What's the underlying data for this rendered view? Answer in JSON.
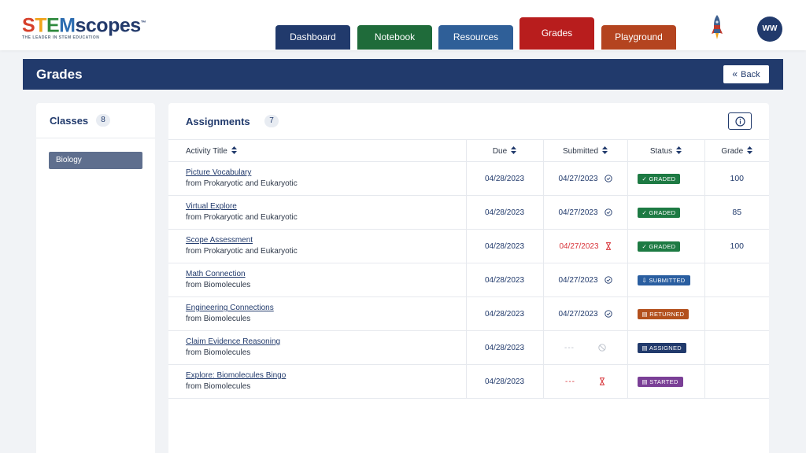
{
  "logo": {
    "parts": [
      "S",
      "T",
      "E",
      "M",
      "scopes"
    ],
    "tagline": "THE LEADER IN STEM EDUCATION",
    "tm": "™"
  },
  "nav": {
    "tabs": [
      {
        "label": "Dashboard",
        "color": "#213a6c",
        "active": false
      },
      {
        "label": "Notebook",
        "color": "#1f6b3a",
        "active": false
      },
      {
        "label": "Resources",
        "color": "#2f5f98",
        "active": false
      },
      {
        "label": "Grades",
        "color": "#b81d1d",
        "active": true
      },
      {
        "label": "Playground",
        "color": "#b4441f",
        "active": false
      }
    ],
    "rocket_icon": "rocket-icon",
    "avatar_initials": "WW"
  },
  "header": {
    "title": "Grades",
    "back_label": "Back",
    "back_icon": "chevron-double-left-icon"
  },
  "classes": {
    "title": "Classes",
    "count": "8",
    "items": [
      "Biology"
    ]
  },
  "assignments": {
    "title": "Assignments",
    "count": "7",
    "info_icon": "info-icon",
    "columns": {
      "title": "Activity Title",
      "due": "Due",
      "submitted": "Submitted",
      "status": "Status",
      "grade": "Grade"
    },
    "rows": [
      {
        "title": "Picture Vocabulary",
        "from": "from Prokaryotic and Eukaryotic",
        "due": "04/28/2023",
        "submitted": "04/27/2023",
        "submitted_icon": "check-circle-icon",
        "late": false,
        "status": "✓ GRADED",
        "status_color": "#1d7a43",
        "grade": "100"
      },
      {
        "title": "Virtual Explore",
        "from": "from Prokaryotic and Eukaryotic",
        "due": "04/28/2023",
        "submitted": "04/27/2023",
        "submitted_icon": "check-circle-icon",
        "late": false,
        "status": "✓ GRADED",
        "status_color": "#1d7a43",
        "grade": "85"
      },
      {
        "title": "Scope Assessment",
        "from": "from Prokaryotic and Eukaryotic",
        "due": "04/28/2023",
        "submitted": "04/27/2023",
        "submitted_icon": "hourglass-icon",
        "late": true,
        "status": "✓ GRADED",
        "status_color": "#1d7a43",
        "grade": "100"
      },
      {
        "title": "Math Connection",
        "from": "from Biomolecules",
        "due": "04/28/2023",
        "submitted": "04/27/2023",
        "submitted_icon": "check-circle-icon",
        "late": false,
        "status": "⇩ SUBMITTED",
        "status_color": "#2a5ea0",
        "grade": ""
      },
      {
        "title": "Engineering Connections",
        "from": "from Biomolecules",
        "due": "04/28/2023",
        "submitted": "04/27/2023",
        "submitted_icon": "check-circle-icon",
        "late": false,
        "status": "▤ RETURNED",
        "status_color": "#b3501d",
        "grade": ""
      },
      {
        "title": "Claim Evidence Reasoning",
        "from": "from Biomolecules",
        "due": "04/28/2023",
        "submitted": "---",
        "submitted_icon": "no-entry-icon",
        "late": false,
        "status": "▤ ASSIGNED",
        "status_color": "#213a6c",
        "grade": ""
      },
      {
        "title": "Explore: Biomolecules Bingo",
        "from": "from Biomolecules",
        "due": "04/28/2023",
        "submitted": "---",
        "submitted_icon": "hourglass-icon",
        "late": true,
        "status": "▤ STARTED",
        "status_color": "#7a3f96",
        "grade": ""
      }
    ]
  }
}
